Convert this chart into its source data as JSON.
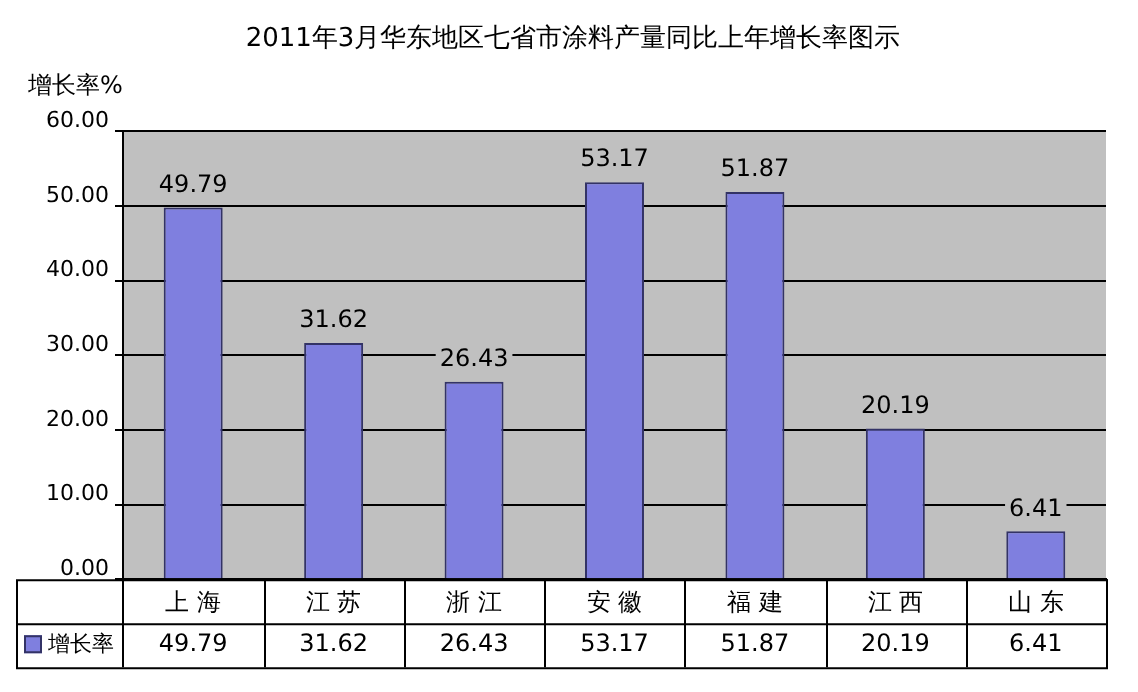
{
  "chart_data": {
    "type": "bar",
    "title": "2011年3月华东地区七省市涂料产量同比上年增长率图示",
    "ylabel": "增长率%",
    "categories": [
      "上 海",
      "江 苏",
      "浙 江",
      "安 徽",
      "福 建",
      "江 西",
      "山 东"
    ],
    "series": [
      {
        "name": "增长率",
        "color": "#7f7fdf",
        "values": [
          49.79,
          31.62,
          26.43,
          53.17,
          51.87,
          20.19,
          6.41
        ],
        "value_labels": [
          "49.79",
          "31.62",
          "26.43",
          "53.17",
          "51.87",
          "20.19",
          "6.41"
        ]
      }
    ],
    "ylim": [
      0,
      60
    ],
    "yticks": [
      {
        "value": 0,
        "label": "0.00"
      },
      {
        "value": 10,
        "label": "10.00"
      },
      {
        "value": 20,
        "label": "20.00"
      },
      {
        "value": 30,
        "label": "30.00"
      },
      {
        "value": 40,
        "label": "40.00"
      },
      {
        "value": 50,
        "label": "50.00"
      },
      {
        "value": 60,
        "label": "60.00"
      }
    ],
    "annotations": [
      "49.79",
      "31.62",
      "26.43",
      "53.17",
      "51.87",
      "20.19",
      "6.41"
    ],
    "grid": "y",
    "legend": "bottom left",
    "data_labels": true
  }
}
